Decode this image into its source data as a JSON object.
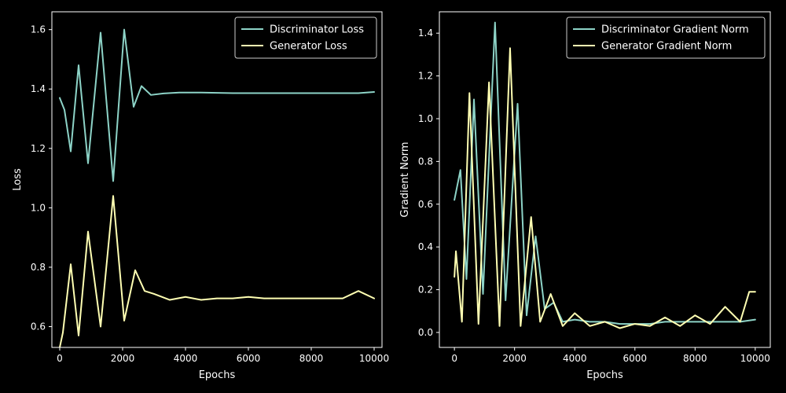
{
  "colors": {
    "background": "#000000",
    "foreground": "#ffffff",
    "series_teal": "#8dd3c7",
    "series_yellow": "#ffffb3"
  },
  "chart_data": [
    {
      "type": "line",
      "xlabel": "Epochs",
      "ylabel": "Loss",
      "xlim": [
        -250,
        10250
      ],
      "ylim": [
        0.53,
        1.66
      ],
      "xticks": [
        0,
        2000,
        4000,
        6000,
        8000,
        10000
      ],
      "yticks": [
        0.6,
        0.8,
        1.0,
        1.2,
        1.4,
        1.6
      ],
      "ytick_format": "1",
      "legend_position": "top-right",
      "series": [
        {
          "name": "Discriminator Loss",
          "color": "#8dd3c7",
          "x": [
            0,
            150,
            350,
            600,
            900,
            1300,
            1700,
            2050,
            2350,
            2600,
            2900,
            3300,
            3800,
            4500,
            5500,
            6500,
            7000,
            7500,
            8000,
            8500,
            9000,
            9500,
            10000
          ],
          "y": [
            1.37,
            1.33,
            1.19,
            1.48,
            1.15,
            1.59,
            1.09,
            1.6,
            1.34,
            1.41,
            1.38,
            1.385,
            1.388,
            1.388,
            1.386,
            1.386,
            1.386,
            1.386,
            1.386,
            1.386,
            1.386,
            1.386,
            1.39
          ]
        },
        {
          "name": "Generator Loss",
          "color": "#ffffb3",
          "x": [
            0,
            100,
            350,
            600,
            900,
            1300,
            1700,
            2050,
            2400,
            2700,
            3000,
            3500,
            4000,
            4500,
            5000,
            5500,
            6000,
            6500,
            7000,
            7500,
            8000,
            8500,
            9000,
            9500,
            10000
          ],
          "y": [
            0.53,
            0.58,
            0.81,
            0.57,
            0.92,
            0.6,
            1.04,
            0.62,
            0.79,
            0.72,
            0.71,
            0.69,
            0.7,
            0.69,
            0.695,
            0.695,
            0.7,
            0.695,
            0.695,
            0.695,
            0.695,
            0.695,
            0.695,
            0.72,
            0.695
          ]
        }
      ]
    },
    {
      "type": "line",
      "xlabel": "Epochs",
      "ylabel": "Gradient Norm",
      "xlim": [
        -500,
        10500
      ],
      "ylim": [
        -0.07,
        1.5
      ],
      "xticks": [
        0,
        2000,
        4000,
        6000,
        8000,
        10000
      ],
      "yticks": [
        0.0,
        0.2,
        0.4,
        0.6,
        0.8,
        1.0,
        1.2,
        1.4
      ],
      "ytick_format": "1",
      "legend_position": "top-right",
      "series": [
        {
          "name": "Discriminator Gradient Norm",
          "color": "#8dd3c7",
          "x": [
            0,
            200,
            400,
            650,
            950,
            1350,
            1700,
            2100,
            2400,
            2700,
            3000,
            3300,
            3600,
            4000,
            4500,
            5000,
            5500,
            6000,
            6500,
            7000,
            7500,
            8000,
            8500,
            9000,
            9500,
            10000
          ],
          "y": [
            0.62,
            0.76,
            0.25,
            1.09,
            0.18,
            1.45,
            0.15,
            1.07,
            0.08,
            0.45,
            0.11,
            0.14,
            0.05,
            0.06,
            0.05,
            0.05,
            0.04,
            0.04,
            0.04,
            0.05,
            0.05,
            0.05,
            0.05,
            0.05,
            0.05,
            0.06
          ]
        },
        {
          "name": "Generator Gradient Norm",
          "color": "#ffffb3",
          "x": [
            0,
            50,
            250,
            500,
            800,
            1150,
            1500,
            1850,
            2200,
            2550,
            2850,
            3200,
            3600,
            4000,
            4500,
            5000,
            5500,
            6000,
            6500,
            7000,
            7500,
            8000,
            8500,
            9000,
            9500,
            9800,
            10000
          ],
          "y": [
            0.26,
            0.38,
            0.05,
            1.12,
            0.04,
            1.17,
            0.03,
            1.33,
            0.03,
            0.54,
            0.05,
            0.18,
            0.03,
            0.09,
            0.03,
            0.05,
            0.02,
            0.04,
            0.03,
            0.07,
            0.03,
            0.08,
            0.04,
            0.12,
            0.05,
            0.19,
            0.19
          ]
        }
      ]
    }
  ]
}
